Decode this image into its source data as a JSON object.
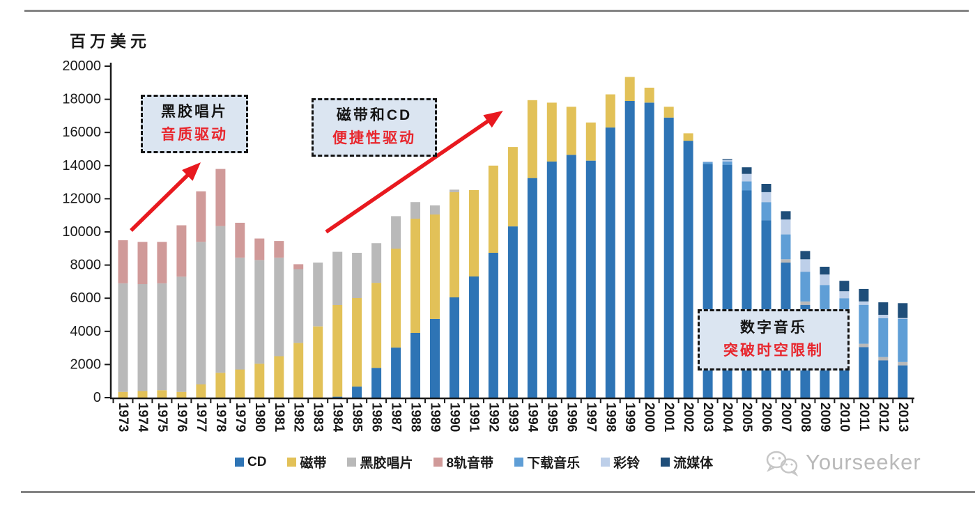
{
  "chart_data": {
    "type": "bar",
    "stacked": true,
    "unit_label": "百万美元",
    "x": [
      1973,
      1974,
      1975,
      1976,
      1977,
      1978,
      1979,
      1980,
      1981,
      1982,
      1983,
      1984,
      1985,
      1986,
      1987,
      1988,
      1989,
      1990,
      1991,
      1992,
      1993,
      1994,
      1995,
      1996,
      1997,
      1998,
      1999,
      2000,
      2001,
      2002,
      2003,
      2004,
      2005,
      2006,
      2007,
      2008,
      2009,
      2010,
      2011,
      2012,
      2013
    ],
    "series": [
      {
        "name": "CD",
        "color": "#2e74b5",
        "values": [
          0,
          0,
          0,
          0,
          0,
          0,
          0,
          0,
          0,
          0,
          0,
          60,
          670,
          1800,
          3020,
          3910,
          4750,
          6050,
          7310,
          8740,
          10330,
          13250,
          14250,
          14650,
          14300,
          16300,
          17900,
          17800,
          16900,
          15500,
          14100,
          14050,
          12500,
          10700,
          8150,
          5600,
          4050,
          3000,
          3050,
          2250,
          1950
        ]
      },
      {
        "name": "磁带",
        "color": "#e2c158",
        "values": [
          350,
          400,
          450,
          350,
          800,
          1500,
          1700,
          2050,
          2500,
          3300,
          4300,
          5530,
          5340,
          5130,
          5970,
          6890,
          6300,
          6350,
          5210,
          5260,
          4790,
          4700,
          3550,
          2900,
          2300,
          2000,
          1450,
          900,
          650,
          450,
          0,
          0,
          0,
          0,
          0,
          0,
          0,
          0,
          0,
          0,
          0
        ]
      },
      {
        "name": "黑胶唱片",
        "color": "#b9b9b9",
        "values": [
          6550,
          6450,
          6450,
          6950,
          8600,
          8850,
          6750,
          6250,
          5950,
          4450,
          3850,
          3210,
          2730,
          2390,
          1960,
          1000,
          550,
          150,
          0,
          0,
          0,
          0,
          0,
          0,
          0,
          0,
          0,
          0,
          0,
          0,
          0,
          0,
          0,
          0,
          200,
          200,
          200,
          200,
          200,
          200,
          200
        ]
      },
      {
        "name": "8轨音带",
        "color": "#d09a99",
        "values": [
          2600,
          2550,
          2500,
          3100,
          3050,
          3450,
          2100,
          1300,
          1000,
          300,
          0,
          0,
          0,
          0,
          0,
          0,
          0,
          0,
          0,
          0,
          0,
          0,
          0,
          0,
          0,
          0,
          0,
          0,
          0,
          0,
          0,
          0,
          0,
          0,
          0,
          0,
          0,
          0,
          0,
          0,
          0
        ]
      },
      {
        "name": "下载音乐",
        "color": "#5f9ed6",
        "values": [
          0,
          0,
          0,
          0,
          0,
          0,
          0,
          0,
          0,
          0,
          0,
          0,
          0,
          0,
          0,
          0,
          0,
          0,
          0,
          0,
          0,
          0,
          0,
          0,
          0,
          0,
          0,
          0,
          0,
          0,
          100,
          200,
          550,
          1100,
          1500,
          1800,
          2550,
          2800,
          2350,
          2350,
          2600
        ]
      },
      {
        "name": "彩铃",
        "color": "#bdcfe9",
        "values": [
          0,
          0,
          0,
          0,
          0,
          0,
          0,
          0,
          0,
          0,
          0,
          0,
          0,
          0,
          0,
          0,
          0,
          0,
          0,
          0,
          0,
          0,
          0,
          0,
          0,
          0,
          0,
          0,
          0,
          0,
          50,
          100,
          450,
          600,
          900,
          750,
          630,
          420,
          210,
          200,
          50
        ]
      },
      {
        "name": "流媒体",
        "color": "#1f4e79",
        "values": [
          0,
          0,
          0,
          0,
          0,
          0,
          0,
          0,
          0,
          0,
          0,
          0,
          0,
          0,
          0,
          0,
          0,
          0,
          0,
          0,
          0,
          0,
          0,
          0,
          0,
          0,
          0,
          0,
          0,
          0,
          0,
          50,
          400,
          500,
          500,
          500,
          470,
          630,
          750,
          750,
          900
        ]
      }
    ],
    "ylim": [
      0,
      20000
    ],
    "ytick_step": 2000,
    "grid": false,
    "legend_position": "bottom",
    "annotations": [
      {
        "line1": "黑胶唱片",
        "line2": "音质驱动"
      },
      {
        "line1": "磁带和CD",
        "line2": "便捷性驱动"
      },
      {
        "line1": "数字音乐",
        "line2": "突破时空限制"
      }
    ]
  },
  "watermark": {
    "text": "Yourseeker",
    "icon": "wechat-icon"
  }
}
